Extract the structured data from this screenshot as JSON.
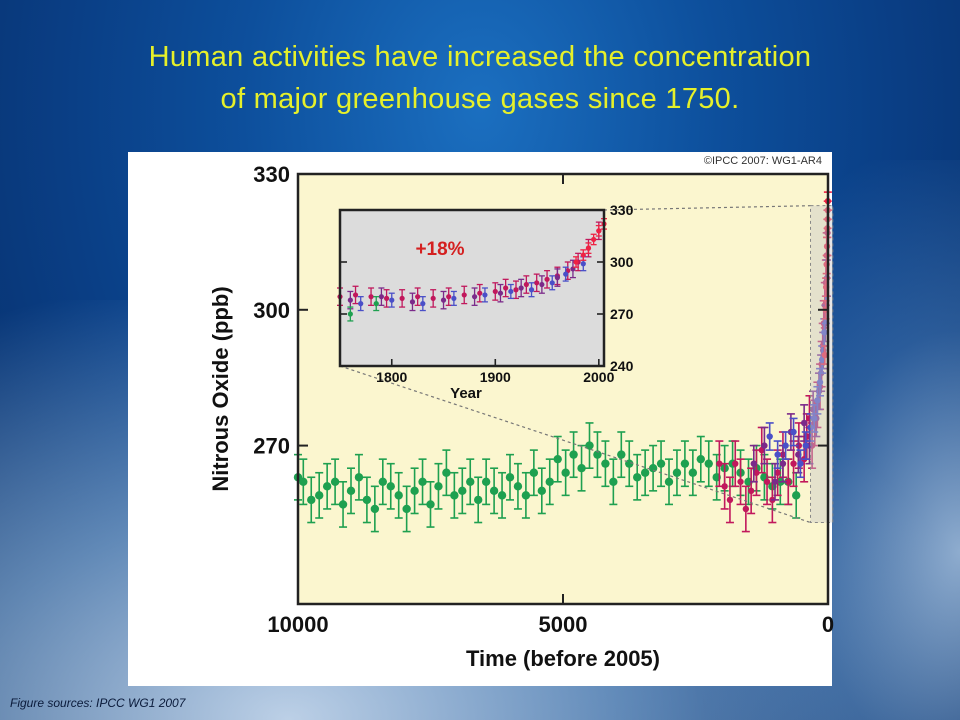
{
  "slide": {
    "title_line1": "Human activities have increased the concentration",
    "title_line2": "of  major greenhouse gases since 1750.",
    "source": "Figure sources: IPCC WG1 2007"
  },
  "colors": {
    "title": "#e6f02a",
    "plot_bg": "#fbf6cf",
    "inset_bg": "#dcdcdc",
    "series_green": "#1ea050",
    "series_magenta": "#c1185c",
    "series_purple": "#7b2a8a",
    "series_blue": "#4a4fc8",
    "series_red": "#ee2244",
    "annotation": "#d42020"
  },
  "chart_data": [
    {
      "type": "scatter",
      "credit": "©IPCC 2007: WG1-AR4",
      "xlabel": "Time (before 2005)",
      "ylabel": "Nitrous Oxide (ppb)",
      "xlim": [
        10000,
        0
      ],
      "ylim": [
        235,
        330
      ],
      "xticks": [
        10000,
        5000,
        0
      ],
      "yticks": [
        270,
        300,
        330
      ],
      "grid": false,
      "series": [
        {
          "color": "green",
          "x": [
            10000,
            9900,
            9750,
            9600,
            9450,
            9300,
            9150,
            9000,
            8850,
            8700,
            8550,
            8400,
            8250,
            8100,
            7950,
            7800,
            7650,
            7500,
            7350,
            7200,
            7050,
            6900,
            6750,
            6600,
            6450,
            6300,
            6150,
            6000,
            5850,
            5700,
            5550,
            5400,
            5250,
            5100,
            4950,
            4800,
            4650,
            4500,
            4350,
            4200,
            4050,
            3900,
            3750,
            3600,
            3450,
            3300,
            3150,
            3000,
            2850,
            2700,
            2550,
            2400,
            2250,
            2100,
            1950,
            1800,
            1650,
            1500,
            1350,
            1200,
            1050,
            900,
            750,
            600
          ],
          "y": [
            263,
            262,
            258,
            259,
            261,
            262,
            257,
            260,
            263,
            258,
            256,
            262,
            261,
            259,
            256,
            260,
            262,
            257,
            261,
            264,
            259,
            260,
            262,
            258,
            262,
            260,
            259,
            263,
            261,
            259,
            264,
            260,
            262,
            267,
            264,
            268,
            265,
            270,
            268,
            266,
            262,
            268,
            266,
            263,
            264,
            265,
            266,
            262,
            264,
            266,
            264,
            267,
            266,
            263,
            265,
            266,
            264,
            262,
            265,
            263,
            261,
            262,
            262,
            259
          ],
          "err": 5
        },
        {
          "color": "magenta",
          "x": [
            2050,
            1950,
            1850,
            1750,
            1650,
            1550,
            1450,
            1350,
            1250,
            1150,
            1050,
            950,
            850,
            750,
            650,
            550,
            450,
            400,
            350,
            300,
            250,
            200,
            150,
            120,
            100,
            80,
            60,
            40,
            25,
            10
          ],
          "y": [
            266,
            261,
            258,
            266,
            262,
            256,
            260,
            264,
            269,
            262,
            258,
            264,
            268,
            262,
            266,
            270,
            267,
            272,
            276,
            270,
            275,
            279,
            283,
            288,
            292,
            297,
            301,
            306,
            312,
            317
          ],
          "err": 5
        },
        {
          "color": "purple",
          "x": [
            1400,
            1200,
            1000,
            850,
            700,
            560,
            450,
            350,
            280,
            220,
            170,
            130,
            90,
            50,
            20
          ],
          "y": [
            266,
            270,
            262,
            266,
            273,
            268,
            275,
            270,
            278,
            276,
            282,
            286,
            291,
            297,
            307
          ],
          "err": 4
        },
        {
          "color": "blue",
          "x": [
            1100,
            950,
            800,
            650,
            520,
            420,
            330,
            260,
            200,
            150,
            110,
            70,
            40
          ],
          "y": [
            272,
            268,
            270,
            273,
            266,
            270,
            274,
            276,
            280,
            284,
            289,
            295,
            300
          ],
          "err": 3
        },
        {
          "color": "red",
          "x": [
            60,
            45,
            35,
            25,
            18,
            12,
            8,
            5,
            2
          ],
          "y": [
            290,
            300,
            305,
            310,
            314,
            318,
            320,
            322,
            324
          ],
          "err": 2
        }
      ]
    },
    {
      "type": "scatter",
      "xlabel": "Year",
      "ylabel": "",
      "xlim": [
        1750,
        2005
      ],
      "ylim": [
        240,
        330
      ],
      "xticks": [
        1800,
        1900,
        2000
      ],
      "yticks": [
        240,
        270,
        300,
        330
      ],
      "annotation": "+18%",
      "grid": false,
      "series": [
        {
          "color": "magenta",
          "x": [
            1750,
            1765,
            1780,
            1795,
            1810,
            1825,
            1840,
            1855,
            1870,
            1885,
            1900,
            1910,
            1920,
            1930,
            1940,
            1950,
            1960,
            1970,
            1980,
            1990,
            2000
          ],
          "y": [
            280,
            281,
            280,
            279,
            279,
            280,
            279,
            280,
            281,
            282,
            283,
            285,
            284,
            287,
            288,
            290,
            292,
            295,
            300,
            308,
            318
          ],
          "err": 5
        },
        {
          "color": "purple",
          "x": [
            1760,
            1790,
            1820,
            1850,
            1880,
            1905,
            1925,
            1945,
            1960,
            1975
          ],
          "y": [
            278,
            280,
            277,
            278,
            280,
            282,
            285,
            287,
            291,
            296
          ],
          "err": 5
        },
        {
          "color": "blue",
          "x": [
            1770,
            1800,
            1830,
            1860,
            1890,
            1915,
            1935,
            1955,
            1968,
            1985
          ],
          "y": [
            276,
            278,
            276,
            279,
            281,
            283,
            284,
            288,
            293,
            299
          ],
          "err": 4
        },
        {
          "color": "green",
          "x": [
            1760,
            1785
          ],
          "y": [
            270,
            276
          ],
          "err": 4
        },
        {
          "color": "red",
          "x": [
            1978,
            1985,
            1990,
            1995,
            2000,
            2005
          ],
          "y": [
            300,
            304,
            308,
            313,
            318,
            322
          ],
          "err": 3
        }
      ]
    }
  ]
}
